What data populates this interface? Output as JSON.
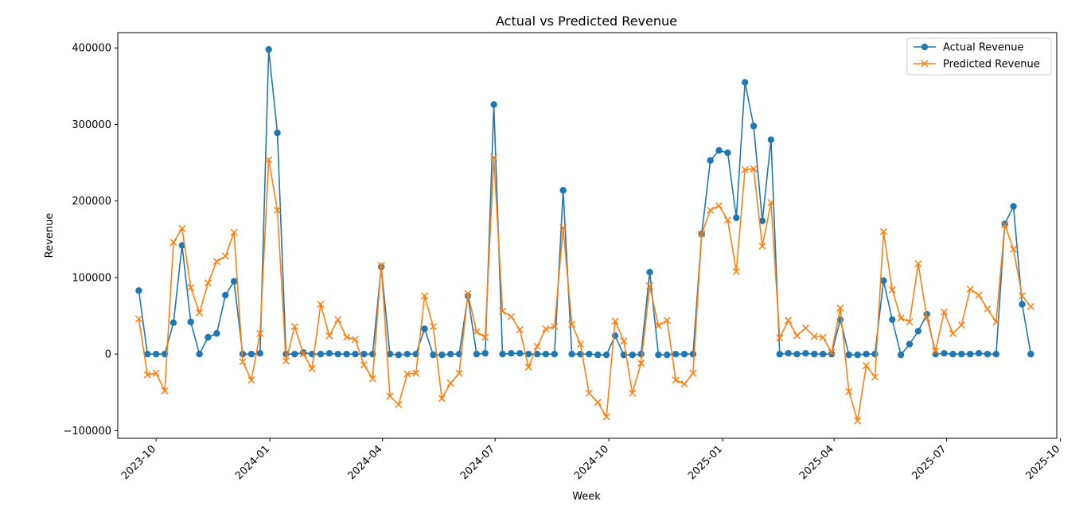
{
  "chart_data": {
    "type": "line",
    "title": "Actual vs Predicted Revenue",
    "xlabel": "Week",
    "ylabel": "Revenue",
    "x_is_date": true,
    "xlim": [
      "2023-08-31",
      "2025-09-28"
    ],
    "ylim": [
      -110000,
      420000
    ],
    "yticks": [
      -100000,
      0,
      100000,
      200000,
      300000,
      400000
    ],
    "ytick_labels": [
      "−100000",
      "0",
      "100000",
      "200000",
      "300000",
      "400000"
    ],
    "xticks": [
      "2023-10-01",
      "2024-01-01",
      "2024-04-01",
      "2024-07-01",
      "2024-10-01",
      "2025-01-01",
      "2025-04-01",
      "2025-07-01",
      "2025-10-01"
    ],
    "xtick_labels": [
      "2023-10",
      "2024-01",
      "2024-04",
      "2024-07",
      "2024-10",
      "2025-01",
      "2025-04",
      "2025-07",
      "2025-10"
    ],
    "grid": false,
    "legend_position": "top-right",
    "x": [
      "2023-09-17",
      "2023-09-24",
      "2023-10-01",
      "2023-10-08",
      "2023-10-15",
      "2023-10-22",
      "2023-10-29",
      "2023-11-05",
      "2023-11-12",
      "2023-11-19",
      "2023-11-26",
      "2023-12-03",
      "2023-12-10",
      "2023-12-17",
      "2023-12-24",
      "2023-12-31",
      "2024-01-07",
      "2024-01-14",
      "2024-01-21",
      "2024-01-28",
      "2024-02-04",
      "2024-02-11",
      "2024-02-18",
      "2024-02-25",
      "2024-03-03",
      "2024-03-10",
      "2024-03-17",
      "2024-03-24",
      "2024-03-31",
      "2024-04-07",
      "2024-04-14",
      "2024-04-21",
      "2024-04-28",
      "2024-05-05",
      "2024-05-12",
      "2024-05-19",
      "2024-05-26",
      "2024-06-02",
      "2024-06-09",
      "2024-06-16",
      "2024-06-23",
      "2024-06-30",
      "2024-07-07",
      "2024-07-14",
      "2024-07-21",
      "2024-07-28",
      "2024-08-04",
      "2024-08-11",
      "2024-08-18",
      "2024-08-25",
      "2024-09-01",
      "2024-09-08",
      "2024-09-15",
      "2024-09-22",
      "2024-09-29",
      "2024-10-06",
      "2024-10-13",
      "2024-10-20",
      "2024-10-27",
      "2024-11-03",
      "2024-11-10",
      "2024-11-17",
      "2024-11-24",
      "2024-12-01",
      "2024-12-08",
      "2024-12-15",
      "2024-12-22",
      "2024-12-29",
      "2025-01-05",
      "2025-01-12",
      "2025-01-19",
      "2025-01-26",
      "2025-02-02",
      "2025-02-09",
      "2025-02-16",
      "2025-02-23",
      "2025-03-02",
      "2025-03-09",
      "2025-03-16",
      "2025-03-23",
      "2025-03-30",
      "2025-04-06",
      "2025-04-13",
      "2025-04-20",
      "2025-04-27",
      "2025-05-04",
      "2025-05-11",
      "2025-05-18",
      "2025-05-25",
      "2025-06-01",
      "2025-06-08",
      "2025-06-15",
      "2025-06-22",
      "2025-06-29",
      "2025-07-06",
      "2025-07-13",
      "2025-07-20",
      "2025-07-27",
      "2025-08-03",
      "2025-08-10",
      "2025-08-17",
      "2025-08-24",
      "2025-08-31",
      "2025-09-07"
    ],
    "series": [
      {
        "name": "Actual Revenue",
        "color": "#1f77b4",
        "marker": "circle",
        "values": [
          83000,
          0,
          0,
          0,
          41000,
          142000,
          42000,
          0,
          22000,
          27000,
          77000,
          95000,
          0,
          0,
          1000,
          398000,
          289000,
          0,
          0,
          2000,
          0,
          0,
          1000,
          0,
          0,
          0,
          0,
          0,
          114000,
          0,
          -1000,
          0,
          0,
          33000,
          -1000,
          -1000,
          0,
          0,
          76000,
          0,
          1000,
          326000,
          0,
          1000,
          1000,
          0,
          0,
          0,
          0,
          214000,
          0,
          0,
          0,
          -1000,
          -1000,
          24000,
          -1000,
          -1000,
          0,
          107000,
          -1000,
          -1000,
          0,
          0,
          0,
          157000,
          253000,
          266000,
          263000,
          178000,
          355000,
          298000,
          174000,
          280000,
          0,
          1000,
          0,
          1000,
          0,
          0,
          0,
          45000,
          -1000,
          -1000,
          0,
          0,
          96000,
          45000,
          -1000,
          13000,
          30000,
          52000,
          0,
          1000,
          0,
          0,
          0,
          1000,
          0,
          0,
          170000,
          193000,
          65000,
          0
        ]
      },
      {
        "name": "Predicted Revenue",
        "color": "#ff7f0e",
        "marker": "x",
        "values": [
          46000,
          -27000,
          -25000,
          -48000,
          146000,
          164000,
          87000,
          54000,
          93000,
          121000,
          128000,
          159000,
          -10000,
          -34000,
          27000,
          254000,
          188000,
          -9000,
          36000,
          0,
          -19000,
          65000,
          24000,
          45000,
          22000,
          19000,
          -14000,
          -32000,
          116000,
          -55000,
          -66000,
          -26000,
          -25000,
          76000,
          36000,
          -58000,
          -38000,
          -25000,
          79000,
          29000,
          22000,
          257000,
          56000,
          49000,
          32000,
          -17000,
          10000,
          33000,
          36000,
          165000,
          39000,
          13000,
          -51000,
          -63000,
          -82000,
          43000,
          17000,
          -51000,
          -12000,
          89000,
          37000,
          44000,
          -34000,
          -39000,
          -25000,
          157000,
          188000,
          194000,
          175000,
          108000,
          241000,
          242000,
          141000,
          198000,
          21000,
          44000,
          24000,
          34000,
          23000,
          22000,
          2000,
          60000,
          -49000,
          -87000,
          -15000,
          -30000,
          160000,
          84000,
          47000,
          42000,
          118000,
          47000,
          4000,
          55000,
          27000,
          38000,
          85000,
          77000,
          59000,
          42000,
          169000,
          137000,
          76000,
          62000
        ]
      }
    ]
  }
}
